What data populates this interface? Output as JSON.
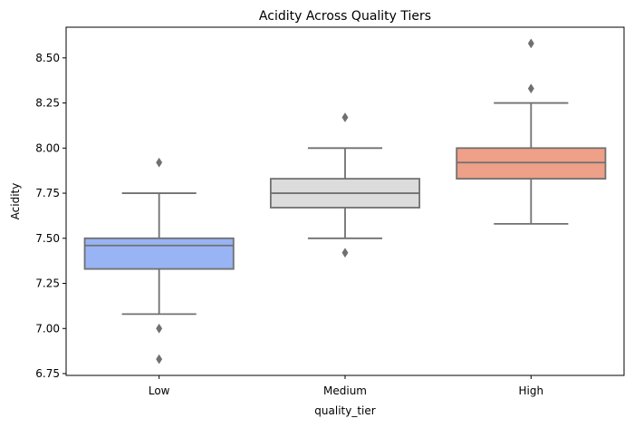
{
  "chart_data": {
    "type": "box",
    "title": "Acidity Across Quality Tiers",
    "xlabel": "quality_tier",
    "ylabel": "Acidity",
    "ylim": [
      6.74,
      8.67
    ],
    "yticks": [
      6.75,
      7.0,
      7.25,
      7.5,
      7.75,
      8.0,
      8.25,
      8.5
    ],
    "ytick_labels": [
      "6.75",
      "7.00",
      "7.25",
      "7.50",
      "7.75",
      "8.00",
      "8.25",
      "8.50"
    ],
    "grid": false,
    "legend": "none",
    "edge_color": "#707070",
    "categories": [
      "Low",
      "Medium",
      "High"
    ],
    "boxes": [
      {
        "category": "Low",
        "color": "#99b4f4",
        "whisker_low": 7.08,
        "q1": 7.33,
        "median": 7.46,
        "q3": 7.5,
        "whisker_high": 7.75,
        "outliers": [
          6.83,
          7.0,
          7.92
        ]
      },
      {
        "category": "Medium",
        "color": "#dcdcdc",
        "whisker_low": 7.5,
        "q1": 7.67,
        "median": 7.75,
        "q3": 7.83,
        "whisker_high": 8.0,
        "outliers": [
          7.42,
          8.17
        ]
      },
      {
        "category": "High",
        "color": "#eea088",
        "whisker_low": 7.58,
        "q1": 7.83,
        "median": 7.92,
        "q3": 8.0,
        "whisker_high": 8.25,
        "outliers": [
          8.33,
          8.58
        ]
      }
    ]
  }
}
